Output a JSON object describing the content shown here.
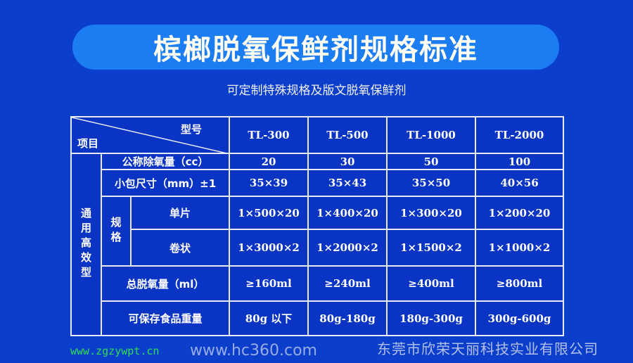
{
  "title": "槟榔脱氧保鲜剂规格标准",
  "subtitle": "可定制特殊规格及版文脱氧保鲜剂",
  "table": {
    "corner_top": "型号",
    "corner_bottom": "项目",
    "models": [
      "TL-300",
      "TL-500",
      "TL-1000",
      "TL-2000"
    ],
    "group_label": "通用高效型",
    "spec_label": "规格",
    "rows": [
      {
        "label": "公称除氧量（cc）",
        "values": [
          "20",
          "30",
          "50",
          "100"
        ]
      },
      {
        "label": "小包尺寸（mm）±1",
        "values": [
          "35×39",
          "35×43",
          "35×50",
          "40×56"
        ]
      },
      {
        "label": "单片",
        "values": [
          "1×500×20",
          "1×400×20",
          "1×300×20",
          "1×200×20"
        ]
      },
      {
        "label": "卷状",
        "values": [
          "1×3000×2",
          "1×2000×2",
          "1×1500×2",
          "1×1000×2"
        ]
      },
      {
        "label": "总脱氧量（ml）",
        "values": [
          "≥160ml",
          "≥240ml",
          "≥400ml",
          "≥800ml"
        ]
      },
      {
        "label": "可保存食品重量",
        "values": [
          "80g 以下",
          "80g-180g",
          "180g-300g",
          "300g-600g"
        ]
      }
    ]
  },
  "watermark": {
    "company": "东莞市欣荣天丽科技实业有限公司",
    "site1": "www.zgzywpt.cn",
    "site2": "www.hc360.com"
  },
  "colors": {
    "background": "#0b3fcb",
    "title_pill": "#1c7cf2",
    "table_bg": "#0a34c4",
    "grid": "#e8ecf8"
  }
}
